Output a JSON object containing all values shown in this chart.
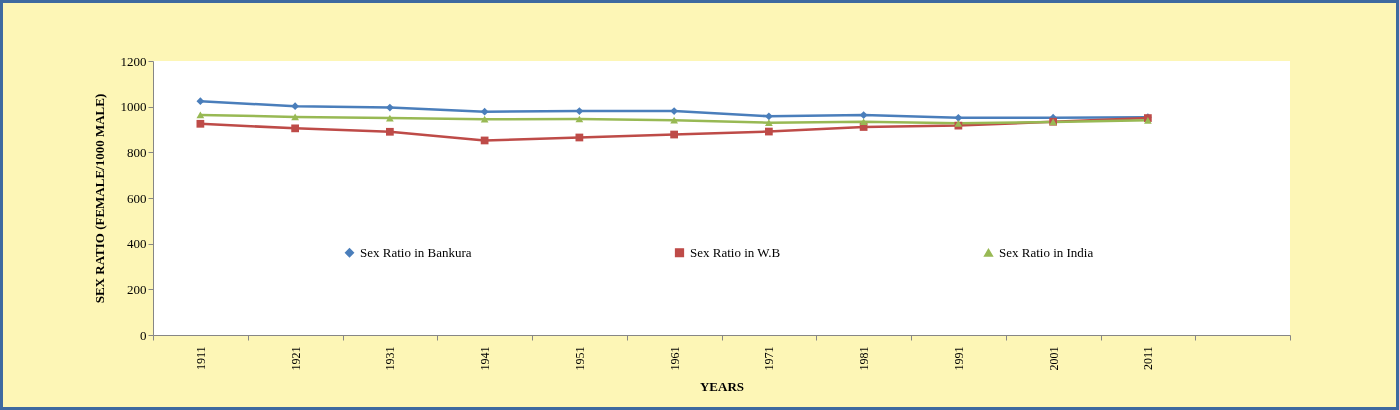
{
  "chart_data": {
    "type": "line",
    "xlabel": "YEARS",
    "ylabel": "SEX RATIO (FEMALE/1000 MALE)",
    "categories": [
      "1911",
      "1921",
      "1931",
      "1941",
      "1951",
      "1961",
      "1971",
      "1981",
      "1991",
      "2001",
      "2011",
      null
    ],
    "series": [
      {
        "name": "Sex Ratio in Bankura",
        "color": "#4a7ebb",
        "marker": "diamond",
        "values": [
          1024,
          1002,
          996,
          978,
          981,
          981,
          958,
          963,
          951,
          952,
          954,
          null
        ]
      },
      {
        "name": "Sex Ratio in W.B",
        "color": "#be4b48",
        "marker": "square",
        "values": [
          925,
          905,
          890,
          852,
          865,
          878,
          891,
          911,
          917,
          934,
          950,
          null
        ]
      },
      {
        "name": "Sex Ratio in India",
        "color": "#98b954",
        "marker": "triangle",
        "values": [
          964,
          955,
          950,
          945,
          946,
          941,
          930,
          934,
          927,
          933,
          940,
          null
        ]
      }
    ],
    "ylim": [
      0,
      1200
    ],
    "yticks": [
      0,
      200,
      400,
      600,
      800,
      1000,
      1200
    ],
    "grid": false,
    "legend": "center",
    "line_style": "solid"
  }
}
